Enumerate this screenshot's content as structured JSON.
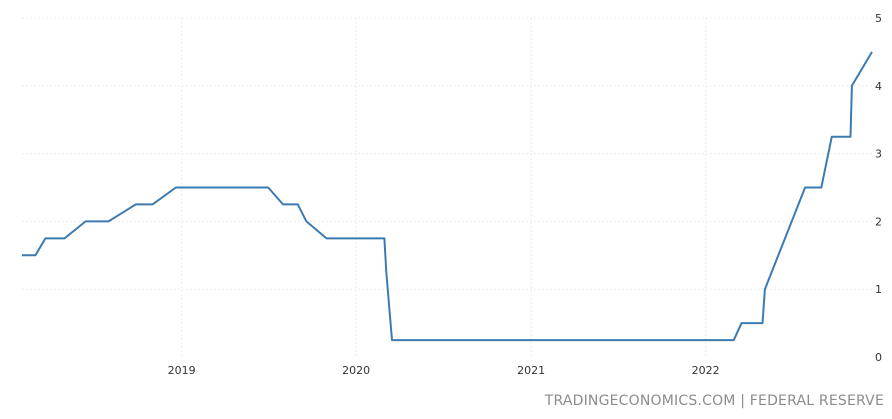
{
  "chart_data": {
    "type": "line",
    "title": "",
    "xlabel": "",
    "ylabel": "",
    "ylim": [
      0,
      5
    ],
    "yticks": [
      "0",
      "1",
      "2",
      "3",
      "4",
      "5"
    ],
    "xticks": [
      {
        "label": "2019",
        "date": "2019-01-01"
      },
      {
        "label": "2020",
        "date": "2020-01-01"
      },
      {
        "label": "2021",
        "date": "2021-01-01"
      },
      {
        "label": "2022",
        "date": "2022-01-01"
      }
    ],
    "xrange": [
      "2018-02-01",
      "2022-12-15"
    ],
    "grid": true,
    "series": [
      {
        "color": "#3c7bb1",
        "points": [
          [
            "2018-02-01",
            1.5
          ],
          [
            "2018-03-01",
            1.5
          ],
          [
            "2018-03-22",
            1.75
          ],
          [
            "2018-05-01",
            1.75
          ],
          [
            "2018-06-14",
            2.0
          ],
          [
            "2018-08-01",
            2.0
          ],
          [
            "2018-09-27",
            2.25
          ],
          [
            "2018-11-01",
            2.25
          ],
          [
            "2018-12-20",
            2.5
          ],
          [
            "2019-07-01",
            2.5
          ],
          [
            "2019-08-01",
            2.25
          ],
          [
            "2019-09-01",
            2.25
          ],
          [
            "2019-09-19",
            2.0
          ],
          [
            "2019-10-31",
            1.75
          ],
          [
            "2020-02-29",
            1.75
          ],
          [
            "2020-03-04",
            1.25
          ],
          [
            "2020-03-16",
            0.25
          ],
          [
            "2022-03-01",
            0.25
          ],
          [
            "2022-03-17",
            0.5
          ],
          [
            "2022-04-30",
            0.5
          ],
          [
            "2022-05-05",
            1.0
          ],
          [
            "2022-06-16",
            1.75
          ],
          [
            "2022-07-28",
            2.5
          ],
          [
            "2022-08-31",
            2.5
          ],
          [
            "2022-09-22",
            3.25
          ],
          [
            "2022-10-31",
            3.25
          ],
          [
            "2022-11-03",
            4.0
          ],
          [
            "2022-12-15",
            4.5
          ]
        ]
      }
    ]
  },
  "source": "TRADINGECONOMICS.COM | FEDERAL RESERVE"
}
